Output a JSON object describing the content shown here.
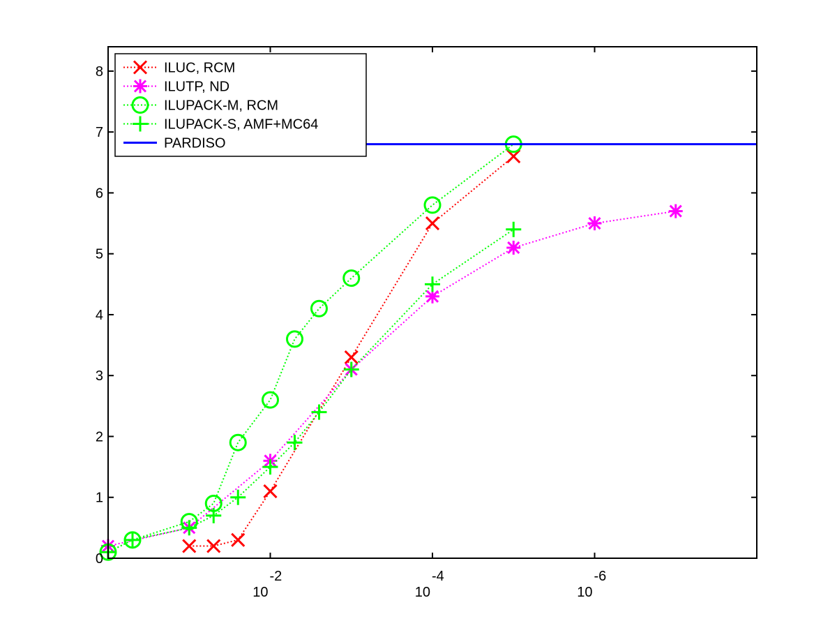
{
  "chart_data": {
    "type": "line",
    "title": "",
    "xlabel": "",
    "ylabel": "",
    "x_scale": "log-reversed",
    "x_tick_labels": [
      {
        "base": "10",
        "exp": "-2",
        "value": 0.01
      },
      {
        "base": "10",
        "exp": "-4",
        "value": 0.0001
      },
      {
        "base": "10",
        "exp": "-6",
        "value": 1e-06
      }
    ],
    "xlim": [
      1,
      1e-08
    ],
    "ylim": [
      0,
      8.4
    ],
    "y_ticks": [
      0,
      1,
      2,
      3,
      4,
      5,
      6,
      7,
      8
    ],
    "legend_position": "top-left",
    "series": [
      {
        "name": "ILUC, RCM",
        "color": "#ff0000",
        "marker": "x",
        "line_style": "dotted",
        "points": [
          [
            0.1,
            0.2
          ],
          [
            0.05,
            0.2
          ],
          [
            0.025,
            0.3
          ],
          [
            0.01,
            1.1
          ],
          [
            0.001,
            3.3
          ],
          [
            0.0001,
            5.5
          ],
          [
            1e-05,
            6.6
          ]
        ]
      },
      {
        "name": "ILUTP,  ND",
        "color": "#ff00ff",
        "marker": "asterisk",
        "line_style": "dotted",
        "points": [
          [
            1,
            0.2
          ],
          [
            0.1,
            0.5
          ],
          [
            0.01,
            1.6
          ],
          [
            0.001,
            3.1
          ],
          [
            0.0001,
            4.3
          ],
          [
            1e-05,
            5.1
          ],
          [
            1e-06,
            5.5
          ],
          [
            1e-07,
            5.7
          ]
        ]
      },
      {
        "name": "ILUPACK-M, RCM",
        "color": "#00ff00",
        "marker": "circle",
        "line_style": "dotted",
        "points": [
          [
            1,
            0.1
          ],
          [
            0.5,
            0.3
          ],
          [
            0.1,
            0.6
          ],
          [
            0.05,
            0.9
          ],
          [
            0.025,
            1.9
          ],
          [
            0.01,
            2.6
          ],
          [
            0.005,
            3.6
          ],
          [
            0.0025,
            4.1
          ],
          [
            0.001,
            4.6
          ],
          [
            0.0001,
            5.8
          ],
          [
            1e-05,
            6.8
          ]
        ]
      },
      {
        "name": "ILUPACK-S, AMF+MC64",
        "color": "#00ff00",
        "marker": "plus",
        "line_style": "dotted",
        "points": [
          [
            1,
            0.1
          ],
          [
            0.5,
            0.3
          ],
          [
            0.1,
            0.5
          ],
          [
            0.05,
            0.7
          ],
          [
            0.025,
            1.0
          ],
          [
            0.01,
            1.5
          ],
          [
            0.005,
            1.9
          ],
          [
            0.0025,
            2.4
          ],
          [
            0.001,
            3.1
          ],
          [
            0.0001,
            4.5
          ],
          [
            1e-05,
            5.4
          ]
        ]
      },
      {
        "name": "PARDISO",
        "color": "#0000ff",
        "marker": "none",
        "line_style": "solid",
        "points": [
          [
            0.001,
            6.8
          ],
          [
            1e-08,
            6.8
          ]
        ]
      }
    ]
  }
}
